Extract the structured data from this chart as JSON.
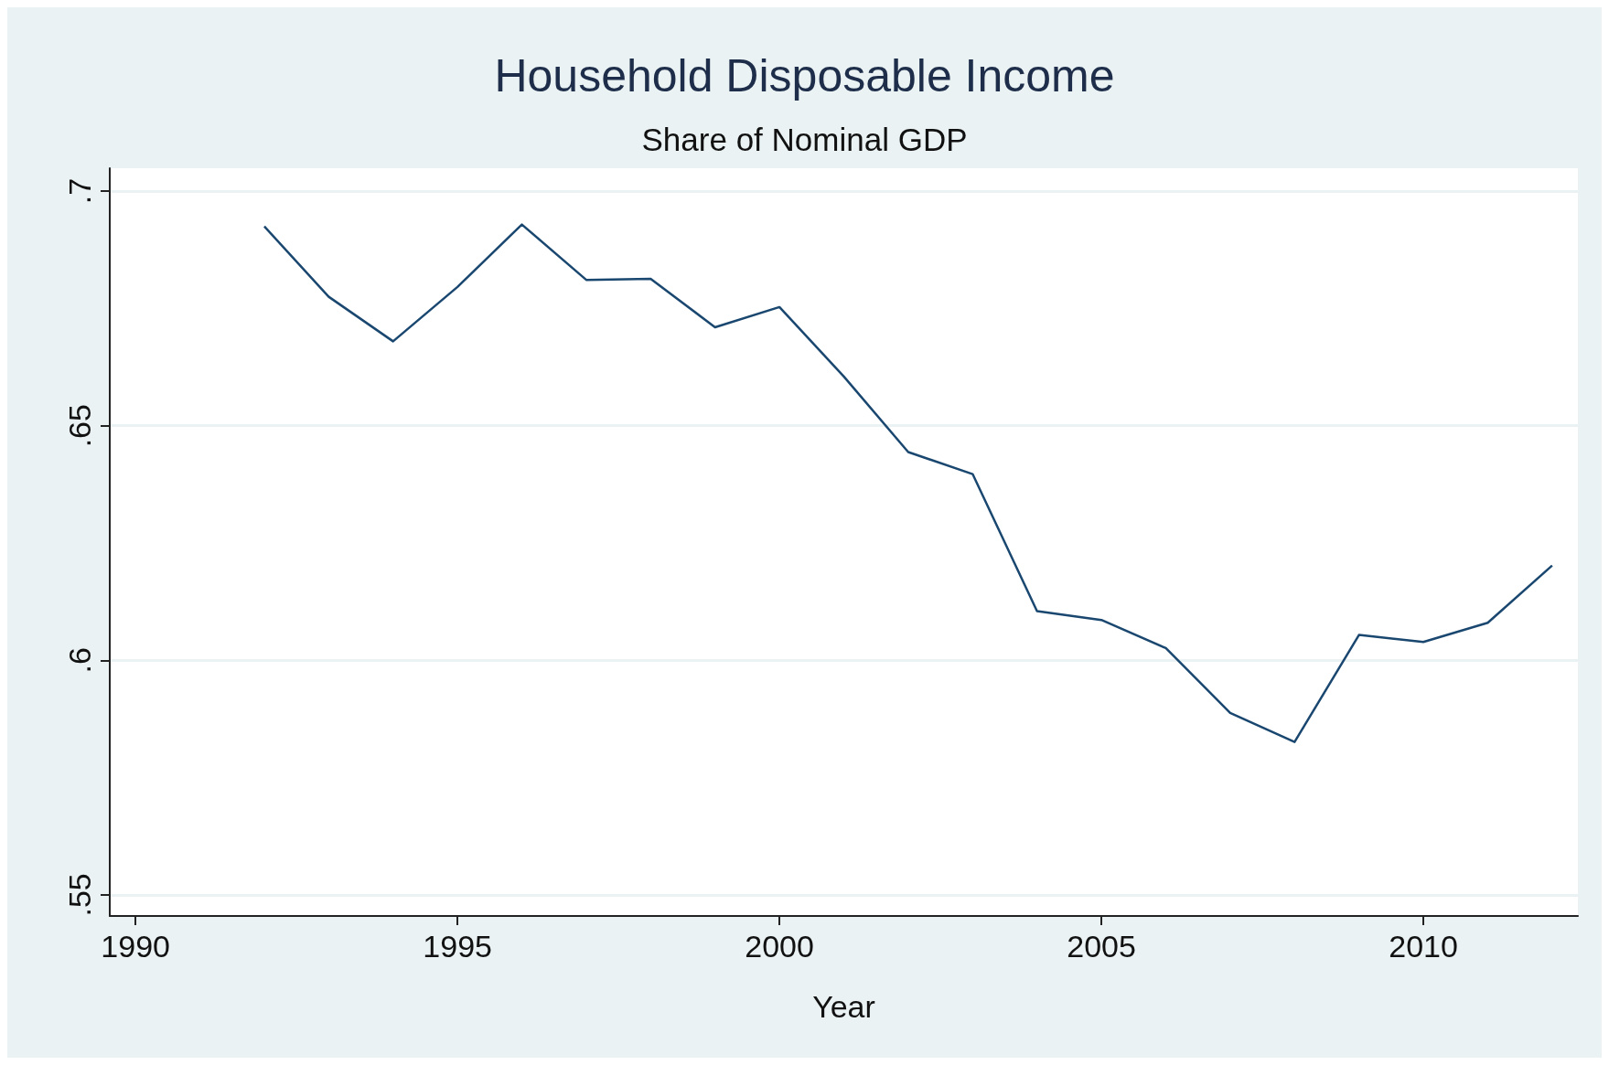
{
  "chart_data": {
    "type": "line",
    "title": "Household Disposable Income",
    "subtitle": "Share of Nominal GDP",
    "xlabel": "Year",
    "x": [
      1992,
      1993,
      1994,
      1995,
      1996,
      1997,
      1998,
      1999,
      2000,
      2001,
      2002,
      2003,
      2004,
      2005,
      2006,
      2007,
      2008,
      2009,
      2010,
      2011,
      2012
    ],
    "series": [
      {
        "color": "#1a476f",
        "values": [
          0.6925,
          0.6775,
          0.668,
          0.6796,
          0.6929,
          0.6811,
          0.6813,
          0.671,
          0.6753,
          0.6605,
          0.6444,
          0.6397,
          0.6105,
          0.6086,
          0.6026,
          0.5888,
          0.5826,
          0.6054,
          0.6039,
          0.608,
          0.6202
        ]
      }
    ],
    "xlim": [
      1989.6,
      2012.4
    ],
    "xticks": [
      1990,
      1995,
      2000,
      2005,
      2010
    ],
    "ylim": [
      0.5455,
      0.7049
    ],
    "yticks": [
      {
        "value": 0.55,
        "label": ".55"
      },
      {
        "value": 0.6,
        "label": ".6"
      },
      {
        "value": 0.65,
        "label": ".65"
      },
      {
        "value": 0.7,
        "label": ".7"
      }
    ],
    "grid": "y",
    "marker": "none",
    "line_style": "solid"
  }
}
